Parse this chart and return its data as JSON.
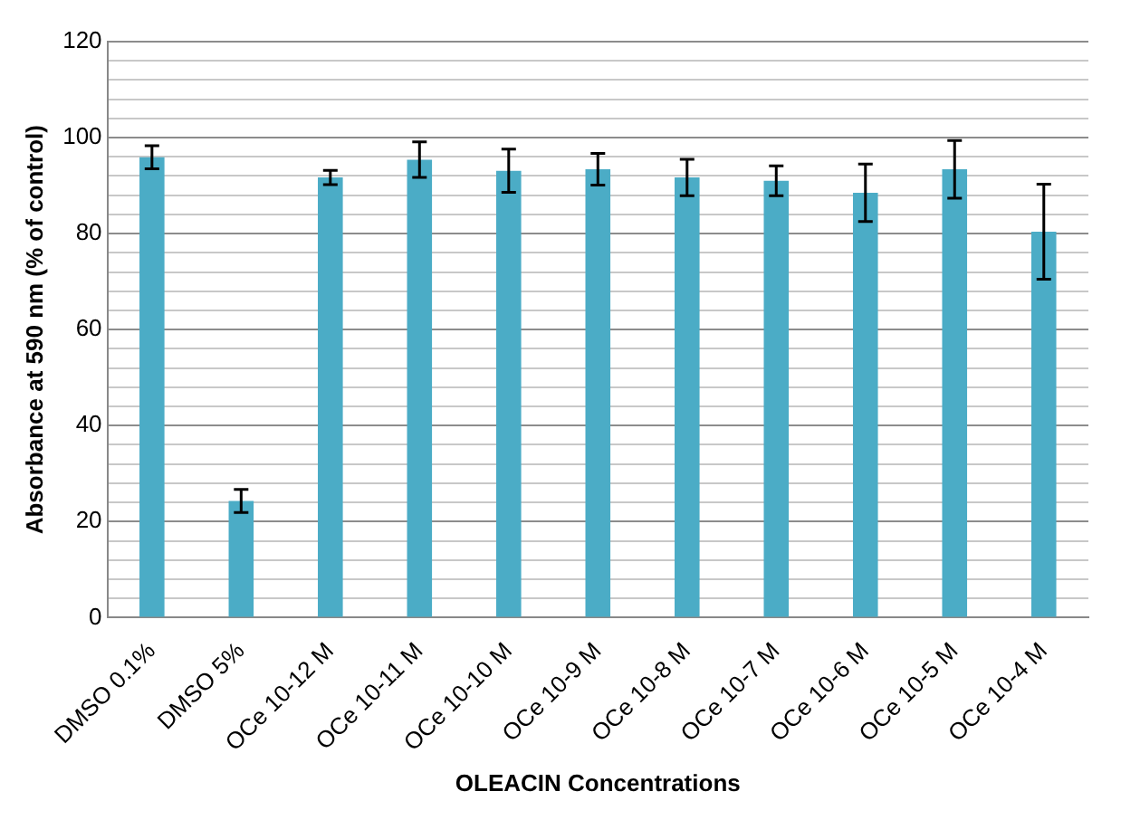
{
  "chart_data": {
    "type": "bar",
    "xlabel": "OLEACIN Concentrations",
    "ylabel": "Absorbance at 590 nm (% of control)",
    "categories": [
      "DMSO 0.1%",
      "DMSO 5%",
      "OCe 10-12 M",
      "OCe 10-11 M",
      "OCe 10-10 M",
      "OCe 10-9 M",
      "OCe 10-8 M",
      "OCe 10-7 M",
      "OCe 10-6 M",
      "OCe 10-5 M",
      "OCe 10-4 M"
    ],
    "values": [
      95.9,
      24.3,
      91.7,
      95.4,
      93.1,
      93.4,
      91.7,
      91.0,
      88.5,
      93.4,
      80.4
    ],
    "errors": [
      2.4,
      2.4,
      1.5,
      3.7,
      4.5,
      3.3,
      3.8,
      3.1,
      6,
      6,
      9.9
    ],
    "color": "#4bacc6",
    "ylim": [
      0,
      120
    ],
    "yticks": [
      0,
      {
        "value": 4,
        "label": null
      },
      {
        "value": 8,
        "label": null
      },
      {
        "value": 12,
        "label": null
      },
      {
        "value": 16,
        "label": null
      },
      20,
      {
        "value": 24,
        "label": null
      },
      {
        "value": 28,
        "label": null
      },
      {
        "value": 32,
        "label": null
      },
      {
        "value": 36,
        "label": null
      },
      40,
      {
        "value": 44,
        "label": null
      },
      {
        "value": 48,
        "label": null
      },
      {
        "value": 52,
        "label": null
      },
      {
        "value": 56,
        "label": null
      },
      60,
      {
        "value": 64,
        "label": null
      },
      {
        "value": 68,
        "label": null
      },
      {
        "value": 72,
        "label": null
      },
      {
        "value": 76,
        "label": null
      },
      80,
      {
        "value": 84,
        "label": null
      },
      {
        "value": 88,
        "label": null
      },
      {
        "value": 92,
        "label": null
      },
      {
        "value": 96,
        "label": null
      },
      100,
      {
        "value": 104,
        "label": null
      },
      {
        "value": 108,
        "label": null
      },
      {
        "value": 112,
        "label": null
      },
      {
        "value": 116,
        "label": null
      },
      120
    ],
    "grid": "y",
    "legend": false
  }
}
